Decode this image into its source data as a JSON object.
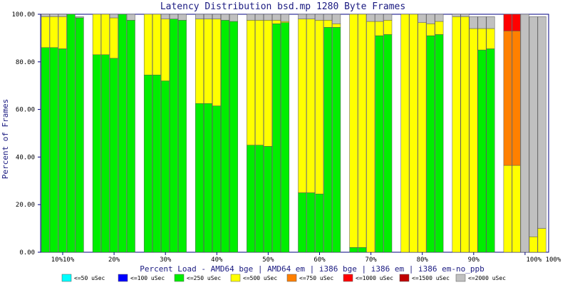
{
  "chart_data": {
    "type": "bar",
    "stacked": true,
    "title": "Latency Distribution bsd.mp 1280 Byte Frames",
    "xlabel": "Percent Load - AMD64 bge | AMD64 em | i386 bge | i386 em | i386 em-no_ppb",
    "ylabel": "Percent of Frames",
    "ylim": [
      0,
      100
    ],
    "yticks": [
      "0.00",
      "20.00",
      "40.00",
      "60.00",
      "80.00",
      "100.00"
    ],
    "categories": [
      "10%",
      "20%",
      "30%",
      "40%",
      "50%",
      "60%",
      "70%",
      "80%",
      "90%",
      "100%"
    ],
    "tick_labels": [
      "10%10%",
      "20%",
      "30%",
      "40%",
      "50%",
      "60%",
      "70%",
      "80%",
      "90%",
      "100% 100%"
    ],
    "configs": [
      "AMD64 bge",
      "AMD64 em",
      "i386 bge",
      "i386 em",
      "i386 em-no_ppb"
    ],
    "legend": [
      {
        "label": "<=50 uSec",
        "color": "#00ffff"
      },
      {
        "label": "<=100 uSec",
        "color": "#0000ff"
      },
      {
        "label": "<=250 uSec",
        "color": "#00ee00"
      },
      {
        "label": "<=500 uSec",
        "color": "#ffff00"
      },
      {
        "label": "<=750 uSec",
        "color": "#ff8000"
      },
      {
        "label": "<=1000 uSec",
        "color": "#ff0000"
      },
      {
        "label": "<=1500 uSec",
        "color": "#c00000"
      },
      {
        "label": "<=2000 uSec",
        "color": "#c0c0c0"
      }
    ],
    "groups": [
      {
        "load": "10%",
        "bars": [
          [
            0,
            0,
            86,
            13,
            0,
            0,
            0,
            1
          ],
          [
            0,
            0,
            86,
            13,
            0,
            0,
            0,
            1
          ],
          [
            0,
            0,
            85.5,
            13.5,
            0,
            0,
            0,
            1
          ],
          [
            0,
            0,
            100,
            0,
            0,
            0,
            0,
            0
          ],
          [
            0,
            0,
            98.5,
            0,
            0,
            0,
            0,
            0.5
          ]
        ]
      },
      {
        "load": "20%",
        "bars": [
          [
            0,
            0,
            83,
            17,
            0,
            0,
            0,
            0
          ],
          [
            0,
            0,
            83,
            17,
            0,
            0,
            0,
            0
          ],
          [
            0,
            0,
            81.5,
            17,
            0,
            0,
            0,
            1.5
          ],
          [
            0,
            0,
            100,
            0,
            0,
            0,
            0,
            0
          ],
          [
            0,
            0,
            97.5,
            0,
            0,
            0,
            0,
            2.5
          ]
        ]
      },
      {
        "load": "30%",
        "bars": [
          [
            0,
            0,
            74.5,
            25.5,
            0,
            0,
            0,
            0
          ],
          [
            0,
            0,
            74.5,
            25.5,
            0,
            0,
            0,
            0
          ],
          [
            0,
            0,
            72,
            26,
            0,
            0,
            0,
            2
          ],
          [
            0,
            0,
            98,
            0,
            0,
            0,
            0,
            2
          ],
          [
            0,
            0,
            97.5,
            0,
            0,
            0,
            0,
            2.5
          ]
        ]
      },
      {
        "load": "40%",
        "bars": [
          [
            0,
            0,
            62.5,
            35.5,
            0,
            0,
            0,
            2
          ],
          [
            0,
            0,
            62.5,
            35.5,
            0,
            0,
            0,
            2
          ],
          [
            0,
            0,
            61.5,
            36.5,
            0,
            0,
            0,
            2
          ],
          [
            0,
            0,
            97.5,
            0,
            0,
            0,
            0,
            2.5
          ],
          [
            0,
            0,
            97,
            0,
            0,
            0,
            0,
            3
          ]
        ]
      },
      {
        "load": "50%",
        "bars": [
          [
            0,
            0,
            45,
            52.5,
            0,
            0,
            0,
            2.5
          ],
          [
            0,
            0,
            45,
            52.5,
            0,
            0,
            0,
            2.5
          ],
          [
            0,
            0,
            44.5,
            53,
            0,
            0,
            0,
            2.5
          ],
          [
            0,
            0,
            96,
            1.5,
            0,
            0,
            0,
            2.5
          ],
          [
            0,
            0,
            96.5,
            0.5,
            0,
            0,
            0,
            3
          ]
        ]
      },
      {
        "load": "60%",
        "bars": [
          [
            0,
            0,
            25,
            73,
            0,
            0,
            0,
            2
          ],
          [
            0,
            0,
            25,
            73,
            0,
            0,
            0,
            2
          ],
          [
            0,
            0,
            24.5,
            73,
            0,
            0,
            0,
            2.5
          ],
          [
            0,
            0,
            94.5,
            3,
            0,
            0,
            0,
            2.5
          ],
          [
            0,
            0,
            94.5,
            1.5,
            0,
            0,
            0,
            4
          ]
        ]
      },
      {
        "load": "70%",
        "bars": [
          [
            0,
            0,
            2,
            98,
            0,
            0,
            0,
            0
          ],
          [
            0,
            0,
            2,
            98,
            0,
            0,
            0,
            0
          ],
          [
            0,
            0,
            0,
            97,
            0,
            0,
            0,
            3
          ],
          [
            0,
            0,
            91,
            6,
            0,
            0,
            0,
            3
          ],
          [
            0,
            0,
            91.5,
            6,
            0,
            0,
            0,
            2.5
          ]
        ]
      },
      {
        "load": "80%",
        "bars": [
          [
            0,
            0,
            0,
            100,
            0,
            0,
            0,
            0
          ],
          [
            0,
            0,
            0,
            100,
            0,
            0,
            0,
            0
          ],
          [
            0,
            0,
            0,
            96.5,
            0,
            0,
            0,
            3.5
          ],
          [
            0,
            0,
            91,
            5,
            0,
            0,
            0,
            4
          ],
          [
            0,
            0,
            91.5,
            5.5,
            0,
            0,
            0,
            3
          ]
        ]
      },
      {
        "load": "90%",
        "bars": [
          [
            0,
            0,
            0,
            99,
            0,
            0,
            0,
            1
          ],
          [
            0,
            0,
            0,
            99,
            0,
            0,
            0,
            1
          ],
          [
            0,
            0,
            0,
            94,
            0,
            0,
            0,
            5
          ],
          [
            0,
            0,
            85,
            9,
            0,
            0,
            0,
            5
          ],
          [
            0,
            0,
            85.5,
            8.5,
            0,
            0,
            0,
            5
          ]
        ]
      },
      {
        "load": "100%",
        "bars": [
          [
            0,
            0,
            0,
            36.5,
            56.5,
            7,
            0,
            0
          ],
          [
            0,
            0,
            0,
            36.5,
            56.5,
            7,
            0,
            0
          ],
          [
            0,
            0,
            0,
            0,
            0,
            0,
            0,
            100
          ],
          [
            0,
            0,
            0,
            6.5,
            0,
            0,
            0,
            92.5
          ],
          [
            0,
            0,
            0,
            10,
            0,
            0,
            0,
            89
          ]
        ]
      }
    ]
  }
}
